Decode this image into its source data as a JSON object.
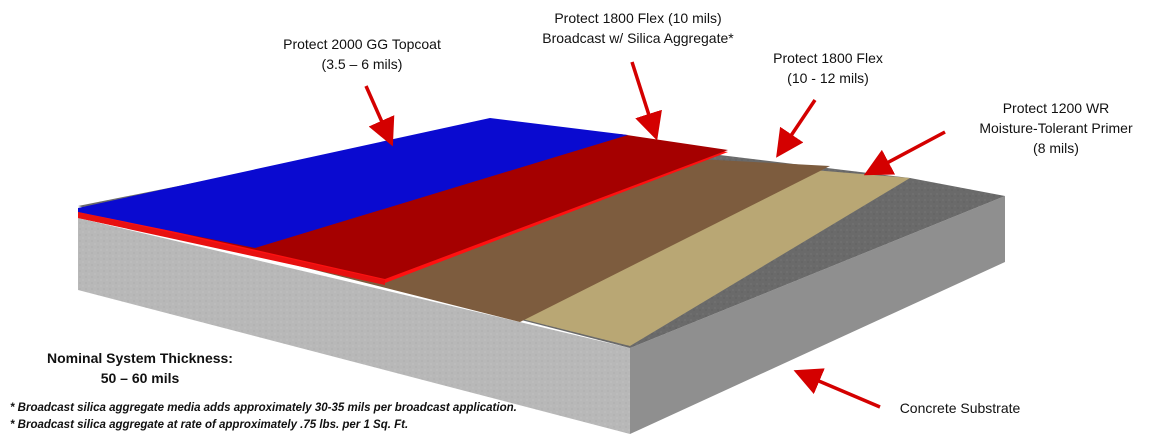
{
  "callouts": {
    "topcoat": {
      "name": "Protect 2000 GG Topcoat",
      "thickness": "(3.5 – 6 mils)"
    },
    "flex_broadcast": {
      "name": "Protect 1800 Flex (10 mils)",
      "detail": "Broadcast w/ Silica Aggregate*"
    },
    "flex": {
      "name": "Protect 1800 Flex",
      "thickness": "(10 - 12 mils)"
    },
    "primer": {
      "name": "Protect 1200 WR",
      "detail": "Moisture-Tolerant Primer",
      "thickness": "(8 mils)"
    },
    "substrate": {
      "name": "Concrete Substrate"
    }
  },
  "system_thickness": {
    "label": "Nominal System Thickness:",
    "value": "50 – 60 mils"
  },
  "footnotes": [
    "* Broadcast silica aggregate media adds approximately 30-35 mils per broadcast application.",
    "* Broadcast silica aggregate at rate of approximately .75 lbs. per 1 Sq. Ft."
  ],
  "colors": {
    "topcoat": "#0a0ad0",
    "flex_broadcast": "#a50000",
    "flex": "#7d5c3e",
    "primer": "#b9a774",
    "concrete_top": "#6a6a6a",
    "concrete_side": "#b8b8b8",
    "arrow": "#d40000"
  }
}
